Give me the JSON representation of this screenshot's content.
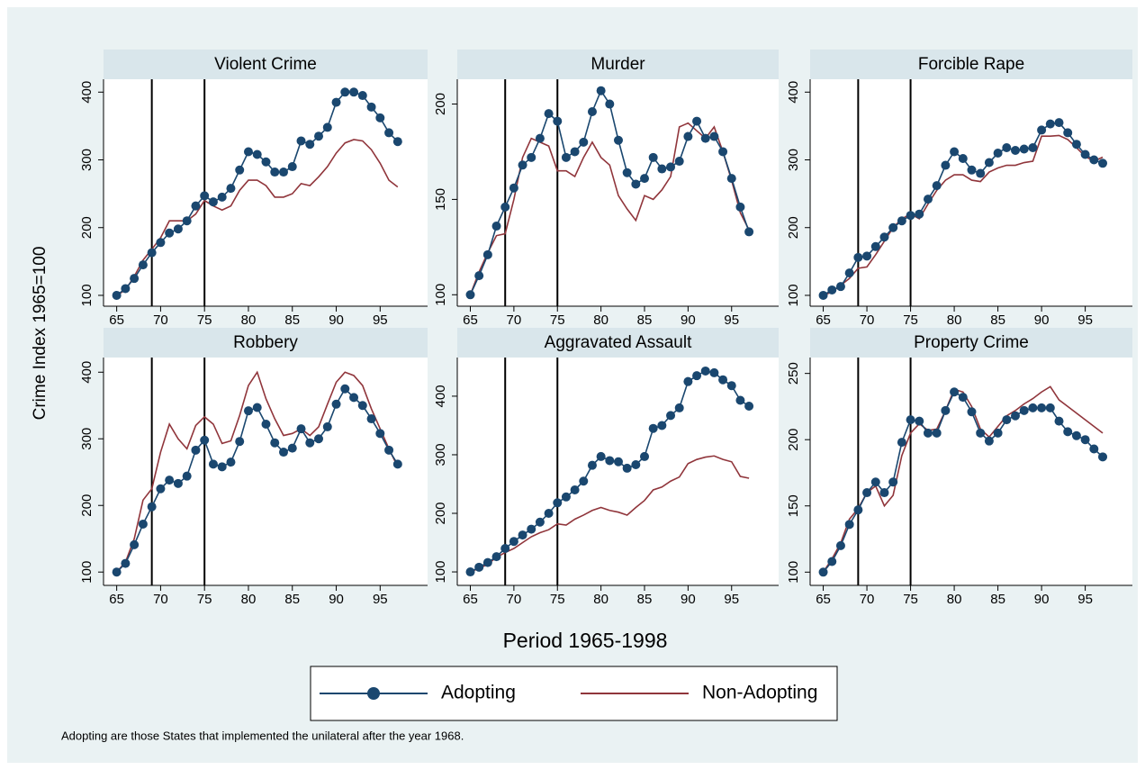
{
  "figure": {
    "xlabel": "Period 1965-1998",
    "ylabel": "Crime Index 1965=100",
    "note": "Adopting are those States that implemented the unilateral after the year 1968."
  },
  "legend": {
    "items": [
      {
        "name": "Adopting",
        "color": "#1a476f",
        "marker": true
      },
      {
        "name": "Non-Adopting",
        "color": "#90353b",
        "marker": false
      }
    ]
  },
  "chart_data": [
    {
      "type": "line",
      "title": "Violent Crime",
      "x_start": 65,
      "xlim": [
        63.5,
        100.4
      ],
      "xticks": [
        65,
        70,
        75,
        80,
        85,
        90,
        95
      ],
      "xlines": [
        69,
        75
      ],
      "ylim": [
        84,
        419
      ],
      "yticks": [
        100,
        200,
        300,
        400
      ],
      "series": [
        {
          "values": [
            100,
            110,
            125,
            145,
            163,
            178,
            192,
            198,
            210,
            232,
            247,
            238,
            245,
            258,
            285,
            312,
            308,
            297,
            282,
            282,
            290,
            328,
            323,
            335,
            348,
            385,
            400,
            400,
            395,
            378,
            362,
            340,
            327
          ]
        },
        {
          "values": [
            100,
            108,
            128,
            152,
            168,
            185,
            210,
            210,
            210,
            220,
            240,
            232,
            226,
            232,
            255,
            270,
            270,
            262,
            245,
            245,
            250,
            265,
            262,
            275,
            290,
            310,
            325,
            330,
            328,
            315,
            295,
            270,
            260
          ]
        }
      ]
    },
    {
      "type": "line",
      "title": "Murder",
      "x_start": 65,
      "xlim": [
        63.5,
        100.4
      ],
      "xticks": [
        65,
        70,
        75,
        80,
        85,
        90,
        95
      ],
      "xlines": [
        69,
        75
      ],
      "ylim": [
        94,
        213
      ],
      "yticks": [
        100,
        150,
        200
      ],
      "series": [
        {
          "values": [
            100,
            110,
            121,
            136,
            146,
            156,
            168,
            172,
            182,
            195,
            191,
            172,
            175,
            180,
            196,
            207,
            200,
            181,
            164,
            158,
            161,
            172,
            166,
            167,
            170,
            183,
            191,
            182,
            183,
            175,
            161,
            146,
            133
          ]
        },
        {
          "values": [
            100,
            112,
            122,
            131,
            132,
            150,
            172,
            182,
            180,
            178,
            165,
            165,
            162,
            172,
            180,
            172,
            168,
            152,
            145,
            139,
            152,
            150,
            155,
            162,
            188,
            190,
            186,
            182,
            188,
            175,
            160,
            143,
            134
          ]
        }
      ]
    },
    {
      "type": "line",
      "title": "Forcible Rape",
      "x_start": 65,
      "xlim": [
        63.5,
        100.4
      ],
      "xticks": [
        65,
        70,
        75,
        80,
        85,
        90,
        95
      ],
      "xlines": [
        69,
        75
      ],
      "ylim": [
        84,
        419
      ],
      "yticks": [
        100,
        200,
        300,
        400
      ],
      "series": [
        {
          "values": [
            100,
            108,
            113,
            133,
            156,
            158,
            172,
            186,
            200,
            210,
            218,
            220,
            242,
            262,
            292,
            312,
            302,
            285,
            280,
            296,
            310,
            318,
            314,
            316,
            318,
            344,
            353,
            355,
            340,
            323,
            308,
            300,
            295
          ]
        },
        {
          "values": [
            100,
            105,
            115,
            125,
            140,
            142,
            160,
            180,
            200,
            213,
            220,
            213,
            235,
            255,
            270,
            278,
            278,
            270,
            268,
            282,
            288,
            292,
            292,
            296,
            298,
            335,
            335,
            336,
            330,
            318,
            305,
            298,
            304
          ]
        }
      ]
    },
    {
      "type": "line",
      "title": "Robbery",
      "x_start": 65,
      "xlim": [
        63.5,
        100.4
      ],
      "xticks": [
        65,
        70,
        75,
        80,
        85,
        90,
        95
      ],
      "xlines": [
        69,
        75
      ],
      "ylim": [
        80,
        422
      ],
      "yticks": [
        100,
        200,
        300,
        400
      ],
      "series": [
        {
          "values": [
            100,
            113,
            141,
            172,
            198,
            225,
            238,
            233,
            244,
            283,
            298,
            262,
            258,
            265,
            296,
            342,
            347,
            322,
            294,
            280,
            286,
            315,
            294,
            300,
            318,
            352,
            375,
            362,
            350,
            330,
            308,
            283,
            262
          ]
        },
        {
          "values": [
            100,
            115,
            150,
            208,
            225,
            280,
            322,
            300,
            285,
            320,
            333,
            322,
            293,
            297,
            335,
            380,
            400,
            360,
            330,
            305,
            308,
            315,
            305,
            318,
            352,
            385,
            400,
            395,
            380,
            345,
            315,
            285,
            258
          ]
        }
      ]
    },
    {
      "type": "line",
      "title": "Aggravated Assault",
      "x_start": 65,
      "xlim": [
        63.5,
        100.4
      ],
      "xticks": [
        65,
        70,
        75,
        80,
        85,
        90,
        95
      ],
      "xlines": [
        69,
        75
      ],
      "ylim": [
        77,
        466
      ],
      "yticks": [
        100,
        200,
        300,
        400
      ],
      "series": [
        {
          "values": [
            100,
            108,
            116,
            126,
            140,
            152,
            163,
            173,
            185,
            200,
            218,
            228,
            240,
            255,
            282,
            297,
            290,
            288,
            277,
            283,
            297,
            345,
            350,
            367,
            380,
            425,
            435,
            443,
            440,
            428,
            418,
            393,
            383
          ]
        },
        {
          "values": [
            100,
            106,
            113,
            125,
            133,
            140,
            150,
            160,
            167,
            172,
            182,
            180,
            190,
            197,
            205,
            210,
            205,
            202,
            197,
            210,
            222,
            240,
            245,
            255,
            262,
            285,
            292,
            296,
            298,
            292,
            288,
            263,
            260
          ]
        }
      ]
    },
    {
      "type": "line",
      "title": "Property Crime",
      "x_start": 65,
      "xlim": [
        63.5,
        100.4
      ],
      "xticks": [
        65,
        70,
        75,
        80,
        85,
        90,
        95
      ],
      "xlines": [
        69,
        75
      ],
      "ylim": [
        90,
        262
      ],
      "yticks": [
        100,
        150,
        200,
        250
      ],
      "series": [
        {
          "values": [
            100,
            108,
            120,
            136,
            147,
            160,
            168,
            160,
            168,
            198,
            215,
            214,
            205,
            205,
            222,
            236,
            232,
            221,
            205,
            199,
            205,
            215,
            218,
            222,
            224,
            224,
            224,
            214,
            206,
            203,
            200,
            193,
            187
          ]
        },
        {
          "values": [
            100,
            110,
            122,
            140,
            148,
            160,
            165,
            150,
            158,
            188,
            205,
            212,
            207,
            208,
            222,
            238,
            236,
            225,
            208,
            202,
            210,
            218,
            222,
            227,
            231,
            236,
            240,
            230,
            225,
            220,
            215,
            210,
            205
          ]
        }
      ]
    }
  ]
}
